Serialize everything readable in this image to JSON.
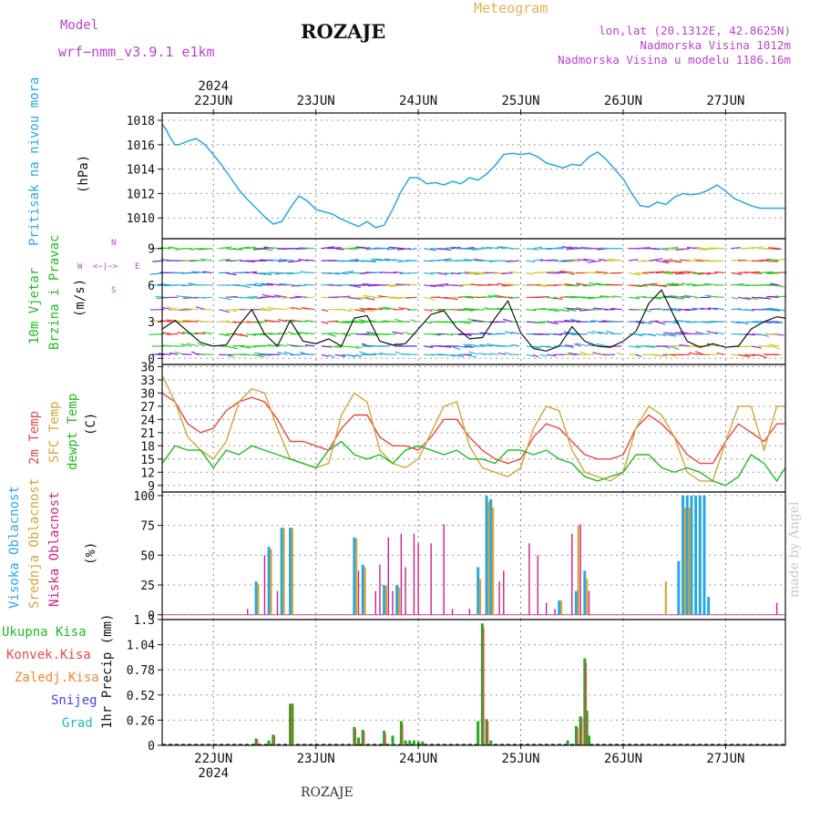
{
  "header": {
    "model_label": "Model",
    "model_name": "wrf−nmm_v3.9.1 e1km",
    "station": "ROZAJE",
    "meteogram": "Meteogram",
    "lonlat": "lon,lat (20.1312E, 42.8625N)",
    "altitude": "Nadmorska Visina 1012m",
    "altitude_model": "Nadmorska Visina u modelu 1186.16m",
    "year": "2024",
    "footer_station": "ROZAJE",
    "watermark": "made by Angel"
  },
  "colors": {
    "pressure": "#2aa7e0",
    "wind_title": "#22bb22",
    "wind_legend": "#bb44cc",
    "temp2m": "#e84848",
    "sfc": "#d4a43a",
    "dewpt": "#22bb22",
    "high_cloud": "#2aa7e0",
    "mid_cloud": "#d4a43a",
    "low_cloud": "#cc2288",
    "total_precip": "#22aa22",
    "conv_precip": "#e84848",
    "frozen_precip": "#ee8833",
    "snow": "#4444dd",
    "graupel": "#22bbbb"
  },
  "dates": [
    "22JUN",
    "23JUN",
    "24JUN",
    "25JUN",
    "26JUN",
    "27JUN"
  ],
  "panels": {
    "pressure": {
      "title": "Pritisak na nivou mora",
      "unit": "(hPa)"
    },
    "wind": {
      "title1": "10m Vjetar",
      "title2": "Brzina i Pravac",
      "unit": "(m/s)",
      "compass_n": "N",
      "compass_e": "E",
      "compass_w": "W",
      "compass_s": "S",
      "compass_line1": "<−|−>",
      "compass_line2": "<−|−>"
    },
    "temperature": {
      "label_2m": "2m Temp",
      "label_sfc": "SFC Temp",
      "label_dew": "dewpt Temp",
      "unit": "(C)"
    },
    "cloud": {
      "label_high": "Visoka Oblacnost",
      "label_mid": "Srednja Oblacnost",
      "label_low": "Niska Oblacnost",
      "unit": "(%)"
    },
    "precip": {
      "title": "1hr Precip (mm)",
      "legend": [
        "Ukupna Kisa",
        "Konvek.Kisa",
        "Zaledj.Kisa",
        "Snijeg",
        "Grad"
      ]
    }
  },
  "chart_data": [
    {
      "type": "line",
      "title": "Pritisak na nivou mora",
      "ylabel": "(hPa)",
      "x_unit": "hours from 21JUN 12:00",
      "ylim": [
        1008.3,
        1018.6
      ],
      "yticks": [
        "1010",
        "1012",
        "1014",
        "1016",
        "1018"
      ],
      "series": [
        {
          "name": "Pritisak na nivou mora",
          "x": [
            0,
            1,
            2,
            3,
            4,
            6,
            8,
            10,
            12,
            14,
            16,
            18,
            20,
            22,
            24,
            26,
            28,
            30,
            32,
            34,
            36,
            38,
            40,
            42,
            44,
            46,
            48,
            50,
            52,
            54,
            56,
            58,
            60,
            62,
            64,
            66,
            68,
            70,
            72,
            74,
            76,
            78,
            80,
            82,
            84,
            86,
            88,
            90,
            92,
            94,
            96,
            98,
            100,
            102,
            104,
            106,
            108,
            110,
            112,
            114,
            116,
            118,
            120,
            122,
            124,
            126,
            128,
            130,
            132,
            134,
            136,
            138,
            140,
            142,
            144,
            146
          ],
          "values": [
            1017.7,
            1017.2,
            1016.5,
            1016.0,
            1016.0,
            1016.3,
            1016.5,
            1016.0,
            1015.2,
            1014.3,
            1013.3,
            1012.3,
            1011.5,
            1010.8,
            1010.1,
            1009.5,
            1009.7,
            1010.8,
            1011.8,
            1011.4,
            1010.7,
            1010.5,
            1010.3,
            1009.9,
            1009.6,
            1009.3,
            1009.7,
            1009.2,
            1009.4,
            1010.7,
            1012.2,
            1013.3,
            1013.3,
            1012.8,
            1012.9,
            1012.7,
            1013.0,
            1012.8,
            1013.3,
            1013.1,
            1013.6,
            1014.3,
            1015.2,
            1015.3,
            1015.2,
            1015.3,
            1015.0,
            1014.5,
            1014.3,
            1014.1,
            1014.4,
            1014.3,
            1015.0,
            1015.4,
            1014.8,
            1014.0,
            1013.2,
            1012.0,
            1011.0,
            1010.9,
            1011.3,
            1011.1,
            1011.7,
            1012.0,
            1011.9,
            1012.0,
            1012.3,
            1012.7,
            1012.2,
            1011.6,
            1011.3,
            1011.0,
            1010.8,
            1010.8,
            1010.8,
            1010.8
          ]
        }
      ]
    },
    {
      "type": "line",
      "title": "10m Vjetar Brzina i Pravac",
      "ylabel": "(m/s)",
      "x_unit": "hours from 21JUN 12:00",
      "ylim": [
        -0.5,
        9.8
      ],
      "yticks": [
        "0",
        "3",
        "6",
        "9"
      ],
      "series": [
        {
          "name": "10m Vjetar",
          "x": [
            0,
            3,
            6,
            9,
            12,
            15,
            18,
            21,
            24,
            27,
            30,
            33,
            36,
            39,
            42,
            45,
            48,
            51,
            54,
            57,
            60,
            63,
            66,
            69,
            72,
            75,
            78,
            81,
            84,
            87,
            90,
            93,
            96,
            99,
            102,
            105,
            108,
            111,
            114,
            117,
            120,
            123,
            126,
            129,
            132,
            135,
            138,
            141,
            144,
            146
          ],
          "values": [
            2.4,
            3.1,
            2.2,
            1.3,
            1.0,
            1.1,
            2.7,
            4.0,
            2.0,
            1.0,
            3.1,
            1.4,
            1.2,
            1.6,
            1.0,
            3.3,
            3.5,
            1.4,
            1.1,
            1.2,
            2.4,
            3.6,
            3.9,
            2.5,
            1.6,
            1.7,
            3.3,
            4.7,
            2.1,
            0.8,
            0.6,
            1.0,
            2.6,
            1.4,
            1.0,
            0.9,
            1.4,
            2.2,
            4.5,
            5.6,
            3.4,
            1.4,
            0.9,
            1.2,
            0.9,
            1.0,
            2.4,
            3.0,
            3.4,
            3.3
          ]
        }
      ]
    },
    {
      "type": "line",
      "title": "2m Temp / SFC Temp / dewpt Temp",
      "ylabel": "(C)",
      "x_unit": "hours from 21JUN 12:00",
      "ylim": [
        7.5,
        36.5
      ],
      "yticks": [
        "9",
        "12",
        "15",
        "18",
        "21",
        "24",
        "27",
        "30",
        "33",
        "36"
      ],
      "series": [
        {
          "name": "2m Temp",
          "x": [
            0,
            3,
            6,
            9,
            12,
            15,
            18,
            21,
            24,
            27,
            30,
            33,
            36,
            39,
            42,
            45,
            48,
            51,
            54,
            57,
            60,
            63,
            66,
            69,
            72,
            75,
            78,
            81,
            84,
            87,
            90,
            93,
            96,
            99,
            102,
            105,
            108,
            111,
            114,
            117,
            120,
            123,
            126,
            129,
            132,
            135,
            138,
            141,
            144,
            146
          ],
          "values": [
            30,
            28,
            23,
            21,
            22,
            26,
            28,
            29,
            28,
            24,
            19,
            19,
            18,
            17,
            22,
            25,
            25,
            20,
            18,
            18,
            17,
            20,
            24,
            24,
            20,
            17,
            15,
            14,
            15,
            20,
            23,
            22,
            19,
            16,
            15,
            15,
            16,
            22,
            25,
            23,
            20,
            16,
            14,
            14,
            19,
            23,
            21,
            19,
            23,
            23
          ]
        },
        {
          "name": "SFC Temp",
          "x": [
            0,
            3,
            6,
            9,
            12,
            15,
            18,
            21,
            24,
            27,
            30,
            33,
            36,
            39,
            42,
            45,
            48,
            51,
            54,
            57,
            60,
            63,
            66,
            69,
            72,
            75,
            78,
            81,
            84,
            87,
            90,
            93,
            96,
            99,
            102,
            105,
            108,
            111,
            114,
            117,
            120,
            123,
            126,
            129,
            132,
            135,
            138,
            141,
            144,
            146
          ],
          "values": [
            34,
            28,
            20,
            17,
            15,
            19,
            28,
            31,
            30,
            22,
            15,
            14,
            13,
            14,
            25,
            30,
            28,
            17,
            14,
            13,
            15,
            21,
            27,
            28,
            18,
            13,
            12,
            11,
            13,
            22,
            27,
            26,
            17,
            12,
            11,
            10,
            12,
            22,
            27,
            25,
            20,
            12,
            10,
            10,
            19,
            27,
            27,
            17,
            27,
            27
          ]
        },
        {
          "name": "dewpt Temp",
          "x": [
            0,
            3,
            6,
            9,
            12,
            15,
            18,
            21,
            24,
            27,
            30,
            33,
            36,
            39,
            42,
            45,
            48,
            51,
            54,
            57,
            60,
            63,
            66,
            69,
            72,
            75,
            78,
            81,
            84,
            87,
            90,
            93,
            96,
            99,
            102,
            105,
            108,
            111,
            114,
            117,
            120,
            123,
            126,
            129,
            132,
            135,
            138,
            141,
            144,
            146
          ],
          "values": [
            14,
            18,
            17,
            17,
            13,
            17,
            16,
            18,
            17,
            16,
            15,
            14,
            13,
            17,
            19,
            16,
            15,
            16,
            14,
            17,
            18,
            17,
            16,
            17,
            15,
            15,
            14,
            17,
            17,
            16,
            17,
            15,
            14,
            11,
            10,
            11,
            12,
            16,
            16,
            13,
            12,
            13,
            12,
            10,
            9,
            11,
            16,
            14,
            10,
            13
          ]
        }
      ]
    },
    {
      "type": "bar",
      "title": "Visoka / Srednja / Niska Oblacnost",
      "ylabel": "(%)",
      "x_unit": "hours from 21JUN 12:00",
      "ylim": [
        -4,
        103
      ],
      "yticks": [
        "0",
        "25",
        "50",
        "75",
        "100"
      ],
      "series": [
        {
          "name": "Visoka Oblacnost",
          "x": [
            22,
            25,
            28,
            30,
            45,
            47,
            52,
            55,
            74,
            76,
            77,
            93,
            97,
            99,
            121,
            122,
            123,
            124,
            125,
            126,
            127,
            128
          ],
          "values": [
            28,
            57,
            73,
            73,
            65,
            42,
            25,
            25,
            40,
            100,
            97,
            12,
            20,
            37,
            45,
            100,
            100,
            100,
            100,
            100,
            100,
            15
          ]
        },
        {
          "name": "Srednja Oblacnost",
          "x": [
            22.5,
            25.5,
            28.5,
            30.5,
            45.5,
            47.5,
            52.5,
            55.5,
            74.5,
            76.5,
            77.5,
            93.5,
            97.5,
            99.5,
            118,
            122.5,
            123.5
          ],
          "values": [
            26,
            55,
            73,
            73,
            64,
            40,
            24,
            23,
            30,
            95,
            90,
            12,
            75,
            30,
            28,
            90,
            90
          ]
        },
        {
          "name": "Niska Oblacnost",
          "x": [
            20,
            24,
            27,
            46,
            50,
            51,
            53,
            54,
            56,
            57,
            59,
            60,
            63,
            66,
            68,
            72,
            79,
            80,
            86,
            88,
            90,
            92,
            96,
            98,
            100,
            144
          ],
          "values": [
            5,
            50,
            20,
            37,
            20,
            42,
            65,
            20,
            68,
            40,
            68,
            60,
            60,
            76,
            5,
            5,
            28,
            37,
            60,
            50,
            10,
            5,
            68,
            76,
            20,
            10
          ]
        }
      ]
    },
    {
      "type": "bar",
      "title": "1hr Precip (mm)",
      "x_unit": "hours from 21JUN 12:00",
      "ylim": [
        0,
        1.3
      ],
      "yticks": [
        "0",
        "0.26",
        "0.52",
        "0.78",
        "1.04",
        "1.3"
      ],
      "series": [
        {
          "name": "Ukupna Kisa",
          "x": [
            22,
            25,
            26,
            30,
            30.5,
            45,
            46,
            47,
            52,
            54,
            56,
            57,
            58,
            59,
            60,
            61,
            74,
            75,
            76,
            77,
            95,
            97,
            98,
            99,
            99.5,
            100
          ],
          "values": [
            0.07,
            0.05,
            0.11,
            0.43,
            0.43,
            0.19,
            0.08,
            0.16,
            0.15,
            0.1,
            0.25,
            0.05,
            0.05,
            0.05,
            0.04,
            0.04,
            0.25,
            1.26,
            0.27,
            0.05,
            0.05,
            0.2,
            0.3,
            0.9,
            0.36,
            0.1
          ]
        },
        {
          "name": "Konvek.Kisa",
          "x": [
            22.3,
            26.3,
            30.3,
            45.3,
            47.3,
            52.3,
            56.3,
            75.3,
            76.3,
            97.3,
            98.3,
            99.3
          ],
          "values": [
            0.06,
            0.1,
            0.42,
            0.17,
            0.14,
            0.12,
            0.22,
            1.22,
            0.25,
            0.18,
            0.28,
            0.85
          ]
        }
      ]
    }
  ]
}
